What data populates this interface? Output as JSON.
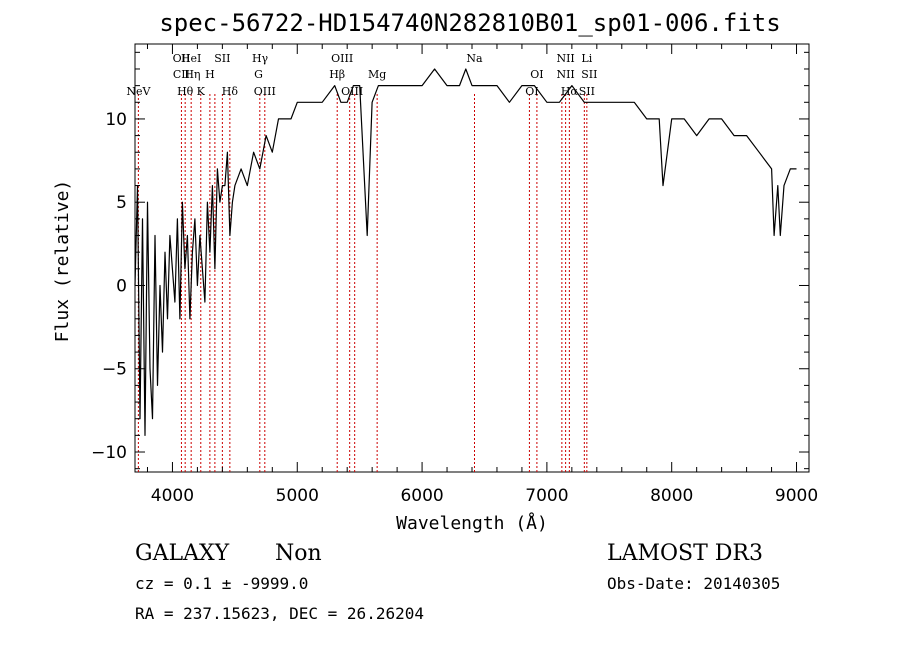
{
  "chart_data": {
    "type": "line",
    "title": "spec-56722-HD154740N282810B01_sp01-006.fits",
    "xlabel": "Wavelength (Å)",
    "ylabel": "Flux (relative)",
    "xlim": [
      3700,
      9100
    ],
    "ylim": [
      -11.2,
      14.5
    ],
    "xticks": [
      4000,
      5000,
      6000,
      7000,
      8000,
      9000
    ],
    "yticks": [
      -10,
      -5,
      0,
      5,
      10
    ],
    "grid": false,
    "series": [
      {
        "x": [
          3700,
          3720,
          3740,
          3760,
          3780,
          3800,
          3820,
          3840,
          3860,
          3880,
          3900,
          3920,
          3940,
          3960,
          3980,
          4000,
          4020,
          4040,
          4060,
          4080,
          4100,
          4120,
          4140,
          4160,
          4180,
          4200,
          4220,
          4240,
          4260,
          4280,
          4300,
          4320,
          4340,
          4360,
          4380,
          4400,
          4420,
          4440,
          4460,
          4480,
          4500,
          4550,
          4600,
          4650,
          4700,
          4750,
          4800,
          4850,
          4900,
          4950,
          5000,
          5100,
          5200,
          5300,
          5350,
          5400,
          5450,
          5500,
          5560,
          5600,
          5650,
          5700,
          5800,
          5900,
          6000,
          6100,
          6200,
          6300,
          6350,
          6400,
          6500,
          6600,
          6700,
          6800,
          6900,
          7000,
          7100,
          7200,
          7300,
          7400,
          7500,
          7600,
          7700,
          7800,
          7900,
          7930,
          8000,
          8100,
          8200,
          8300,
          8400,
          8500,
          8600,
          8700,
          8800,
          8820,
          8850,
          8870,
          8900,
          8950,
          9000
        ],
        "y": [
          0,
          6,
          -8,
          4,
          -9,
          5,
          -5,
          -8,
          3,
          -6,
          0,
          -4,
          2,
          -2,
          3,
          1,
          -1,
          4,
          -2,
          5,
          1,
          3,
          -2,
          2,
          4,
          0,
          3,
          1,
          -1,
          5,
          2,
          6,
          1,
          7,
          5,
          6,
          6,
          8,
          3,
          5,
          6,
          7,
          6,
          8,
          7,
          9,
          8,
          10,
          10,
          10,
          11,
          11,
          11,
          12,
          11,
          11,
          12,
          12,
          3,
          11,
          12,
          12,
          12,
          12,
          12,
          13,
          12,
          12,
          13,
          12,
          12,
          12,
          11,
          12,
          12,
          11,
          11,
          12,
          11,
          11,
          11,
          11,
          11,
          10,
          10,
          6,
          10,
          10,
          9,
          10,
          10,
          9,
          9,
          8,
          7,
          3,
          6,
          3,
          6,
          7,
          7
        ]
      }
    ],
    "annotations": [
      {
        "x": 3727,
        "label": "NeV",
        "row": 2
      },
      {
        "x": 4072,
        "label": "OII",
        "row": 0
      },
      {
        "x": 4072,
        "label": "CII",
        "row": 1
      },
      {
        "x": 4102,
        "label": "Hθ",
        "row": 2
      },
      {
        "x": 4150,
        "label": "HeI",
        "row": 0
      },
      {
        "x": 4160,
        "label": "Hη",
        "row": 1
      },
      {
        "x": 4227,
        "label": "K",
        "row": 2
      },
      {
        "x": 4300,
        "label": "H",
        "row": 1
      },
      {
        "x": 4400,
        "label": "SII",
        "row": 0
      },
      {
        "x": 4460,
        "label": "Hδ",
        "row": 2
      },
      {
        "x": 4702,
        "label": "Hγ",
        "row": 0
      },
      {
        "x": 4690,
        "label": "G",
        "row": 1
      },
      {
        "x": 4740,
        "label": "OIII",
        "row": 2
      },
      {
        "x": 5320,
        "label": "Hβ",
        "row": 1
      },
      {
        "x": 5360,
        "label": "OIII",
        "row": 0
      },
      {
        "x": 5440,
        "label": "OIII",
        "row": 2
      },
      {
        "x": 5640,
        "label": "Mg",
        "row": 1
      },
      {
        "x": 6420,
        "label": "Na",
        "row": 0
      },
      {
        "x": 6920,
        "label": "OI",
        "row": 1
      },
      {
        "x": 6880,
        "label": "OI",
        "row": 2
      },
      {
        "x": 7150,
        "label": "NII",
        "row": 0
      },
      {
        "x": 7150,
        "label": "NII",
        "row": 1
      },
      {
        "x": 7180,
        "label": "Hα",
        "row": 2
      },
      {
        "x": 7320,
        "label": "Li",
        "row": 0
      },
      {
        "x": 7340,
        "label": "SII",
        "row": 1
      },
      {
        "x": 7320,
        "label": "SII",
        "row": 2
      }
    ],
    "line_x": [
      3727,
      4072,
      4102,
      4150,
      4227,
      4300,
      4340,
      4400,
      4460,
      4700,
      4740,
      5320,
      5420,
      5460,
      5640,
      6420,
      6860,
      6920,
      7120,
      7150,
      7180,
      7300,
      7320
    ],
    "line_color": "#cc0000"
  },
  "info": {
    "class": "GALAXY",
    "subclass": "Non",
    "cz": "cz = 0.1 ± -9999.0",
    "radec": "RA = 237.15623, DEC =  26.26204",
    "survey": "LAMOST DR3",
    "obsdate": "Obs-Date: 20140305"
  }
}
